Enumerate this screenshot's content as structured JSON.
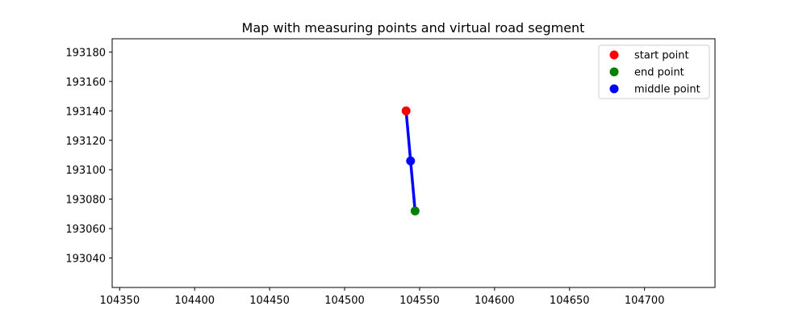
{
  "chart_data": {
    "type": "scatter",
    "title": "Map with measuring points and virtual road segment",
    "xlabel": "",
    "ylabel": "",
    "xlim": [
      104345,
      104747
    ],
    "ylim": [
      193020,
      193189
    ],
    "xticks": [
      104350,
      104400,
      104450,
      104500,
      104550,
      104600,
      104650,
      104700
    ],
    "yticks": [
      193040,
      193060,
      193080,
      193100,
      193120,
      193140,
      193160,
      193180
    ],
    "grid": false,
    "legend_position": "top-right",
    "segment": {
      "color": "#0000ff",
      "points": [
        {
          "x": 104541,
          "y": 193140
        },
        {
          "x": 104544,
          "y": 193106
        },
        {
          "x": 104547,
          "y": 193072
        }
      ]
    },
    "series": [
      {
        "name": "start point",
        "color": "#ff0000",
        "points": [
          {
            "x": 104541,
            "y": 193140
          }
        ]
      },
      {
        "name": "end point",
        "color": "#008000",
        "points": [
          {
            "x": 104547,
            "y": 193072
          }
        ]
      },
      {
        "name": "middle point",
        "color": "#0000ff",
        "points": [
          {
            "x": 104544,
            "y": 193106
          }
        ]
      }
    ]
  }
}
